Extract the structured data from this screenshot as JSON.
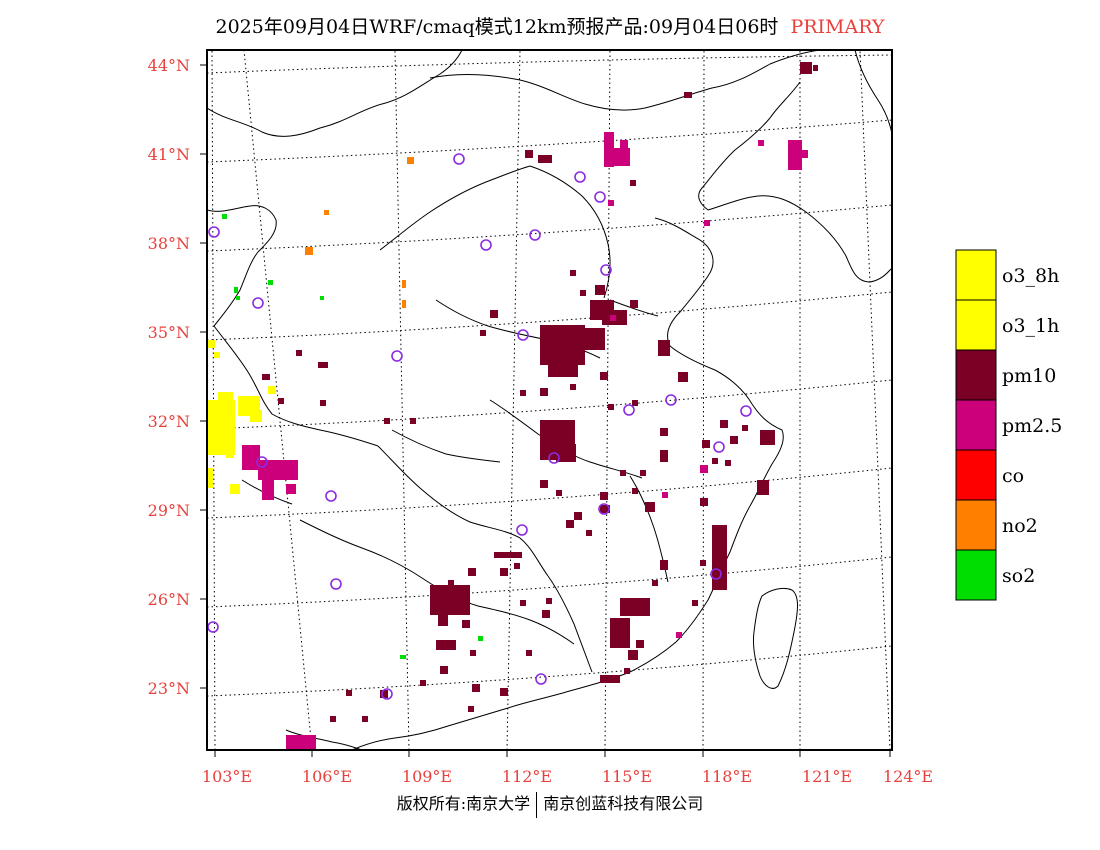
{
  "title": {
    "date": "2025年09月04日",
    "model": "WRF/cmaq模式12km预报产品",
    "valid": "09月04日06时",
    "tag": "PRIMARY"
  },
  "colors": {
    "label": "#e8403c",
    "o3_8h": "#ffff00",
    "o3_1h": "#ffff00",
    "pm10": "#7a0026",
    "pm25": "#cc007a",
    "co": "#ff0000",
    "no2": "#ff7f00",
    "so2": "#00dd00",
    "station": "#8a2be2"
  },
  "map": {
    "lat_labels": [
      "44°N",
      "41°N",
      "38°N",
      "35°N",
      "32°N",
      "29°N",
      "26°N",
      "23°N"
    ],
    "lon_labels": [
      "103°E",
      "106°E",
      "109°E",
      "112°E",
      "115°E",
      "118°E",
      "121°E",
      "124°E"
    ]
  },
  "legend": [
    {
      "label": "o3_8h",
      "color": "#ffff00"
    },
    {
      "label": "o3_1h",
      "color": "#ffff00"
    },
    {
      "label": "pm10",
      "color": "#7a0026"
    },
    {
      "label": "pm2.5",
      "color": "#cc007a"
    },
    {
      "label": "co",
      "color": "#ff0000"
    },
    {
      "label": "no2",
      "color": "#ff7f00"
    },
    {
      "label": "so2",
      "color": "#00dd00"
    }
  ],
  "footer": {
    "left": "版权所有:南京大学",
    "right": "南京创蓝科技有限公司"
  }
}
